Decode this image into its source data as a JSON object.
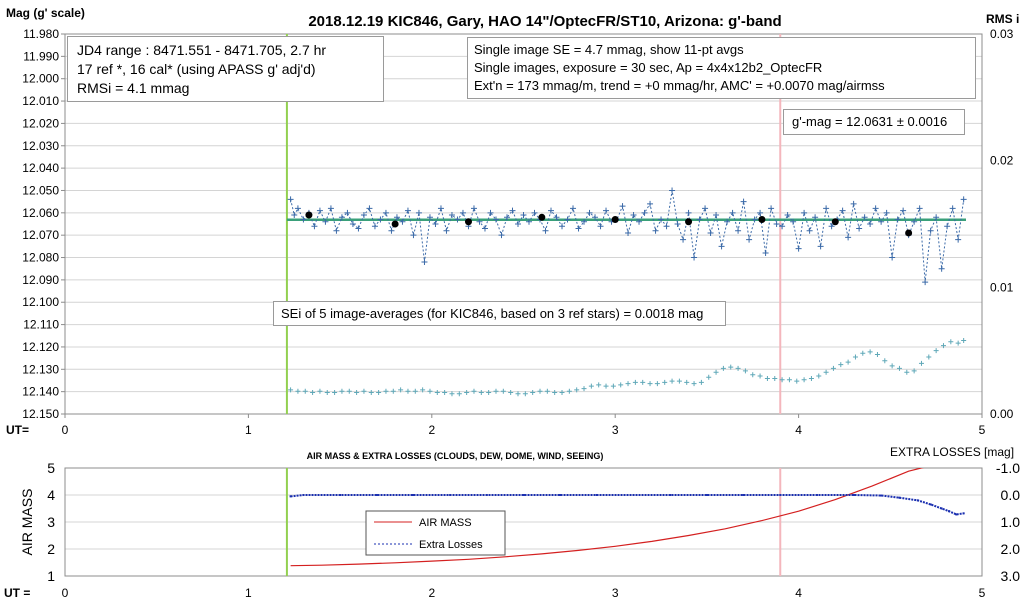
{
  "chart_data": [
    {
      "type": "scatter",
      "title": "2018.12.19 KIC846, Gary, HAO 14\"/OptecFR/ST10, Arizona: g'-band",
      "ylabel": "Mag (g' scale)",
      "y2label": "RMS i",
      "xlabel": "UT=",
      "xlim": [
        0,
        5
      ],
      "ylim": [
        12.15,
        11.98
      ],
      "y_inverted": true,
      "y2lim": [
        0.0,
        0.03
      ],
      "x_ticks": [
        "0",
        "1",
        "2",
        "3",
        "4",
        "5"
      ],
      "y_ticks": [
        "11.980",
        "11.990",
        "12.000",
        "12.010",
        "12.020",
        "12.030",
        "12.040",
        "12.050",
        "12.060",
        "12.070",
        "12.080",
        "12.090",
        "12.100",
        "12.110",
        "12.120",
        "12.130",
        "12.140",
        "12.150"
      ],
      "y2_ticks": [
        "0.00",
        "0.01",
        "0.02",
        "0.03"
      ],
      "grid": "horizontal",
      "vlines": [
        {
          "x": 1.21,
          "color": "#92d050"
        },
        {
          "x": 3.9,
          "color": "#f4b6bc"
        }
      ],
      "fit_level": 12.0631,
      "fit_color": "#3aa07a",
      "series": [
        {
          "kind": "individual",
          "color": "#3b6aa8",
          "x": [
            1.23,
            1.25,
            1.27,
            1.3,
            1.33,
            1.36,
            1.39,
            1.42,
            1.45,
            1.48,
            1.51,
            1.54,
            1.57,
            1.6,
            1.63,
            1.66,
            1.69,
            1.72,
            1.75,
            1.78,
            1.81,
            1.84,
            1.87,
            1.9,
            1.93,
            1.96,
            1.99,
            2.02,
            2.05,
            2.08,
            2.11,
            2.14,
            2.17,
            2.2,
            2.23,
            2.26,
            2.29,
            2.32,
            2.35,
            2.38,
            2.41,
            2.44,
            2.47,
            2.5,
            2.53,
            2.56,
            2.59,
            2.62,
            2.65,
            2.68,
            2.71,
            2.74,
            2.77,
            2.8,
            2.83,
            2.86,
            2.89,
            2.92,
            2.95,
            2.98,
            3.01,
            3.04,
            3.07,
            3.1,
            3.13,
            3.16,
            3.19,
            3.22,
            3.25,
            3.28,
            3.31,
            3.34,
            3.37,
            3.4,
            3.43,
            3.46,
            3.49,
            3.52,
            3.55,
            3.58,
            3.61,
            3.64,
            3.67,
            3.7,
            3.73,
            3.76,
            3.79,
            3.82,
            3.85,
            3.88,
            3.91,
            3.94,
            3.97,
            4.0,
            4.03,
            4.06,
            4.09,
            4.12,
            4.15,
            4.18,
            4.21,
            4.24,
            4.27,
            4.3,
            4.33,
            4.36,
            4.39,
            4.42,
            4.45,
            4.48,
            4.51,
            4.54,
            4.57,
            4.6,
            4.63,
            4.66,
            4.69,
            4.72,
            4.75,
            4.78,
            4.81,
            4.84,
            4.87,
            4.9
          ],
          "y": [
            12.054,
            12.061,
            12.058,
            12.063,
            12.06,
            12.066,
            12.059,
            12.064,
            12.058,
            12.068,
            12.062,
            12.06,
            12.065,
            12.067,
            12.061,
            12.058,
            12.066,
            12.063,
            12.06,
            12.068,
            12.062,
            12.064,
            12.059,
            12.07,
            12.06,
            12.082,
            12.062,
            12.065,
            12.058,
            12.068,
            12.061,
            12.063,
            12.06,
            12.066,
            12.058,
            12.064,
            12.067,
            12.06,
            12.063,
            12.07,
            12.062,
            12.059,
            12.065,
            12.061,
            12.064,
            12.06,
            12.063,
            12.068,
            12.059,
            12.062,
            12.066,
            12.063,
            12.058,
            12.067,
            12.064,
            12.06,
            12.062,
            12.066,
            12.059,
            12.064,
            12.063,
            12.057,
            12.069,
            12.061,
            12.064,
            12.06,
            12.056,
            12.068,
            12.063,
            12.066,
            12.05,
            12.065,
            12.072,
            12.06,
            12.08,
            12.063,
            12.058,
            12.069,
            12.061,
            12.075,
            12.064,
            12.06,
            12.068,
            12.055,
            12.072,
            12.063,
            12.06,
            12.078,
            12.058,
            12.065,
            12.066,
            12.061,
            12.064,
            12.076,
            12.06,
            12.068,
            12.062,
            12.075,
            12.058,
            12.066,
            12.063,
            12.059,
            12.071,
            12.056,
            12.067,
            12.062,
            12.065,
            12.058,
            12.064,
            12.06,
            12.08,
            12.063,
            12.059,
            12.07,
            12.064,
            12.058,
            12.091,
            12.068,
            12.062,
            12.085,
            12.066,
            12.058,
            12.072,
            12.054
          ]
        },
        {
          "kind": "averages",
          "color": "#000000",
          "x": [
            1.33,
            1.8,
            2.2,
            2.6,
            3.0,
            3.4,
            3.8,
            4.2,
            4.6
          ],
          "y": [
            12.061,
            12.065,
            12.064,
            12.062,
            12.063,
            12.064,
            12.063,
            12.064,
            12.069
          ]
        },
        {
          "kind": "rms",
          "axis": "y2",
          "color": "#5fa8b8",
          "x": [
            1.23,
            1.27,
            1.31,
            1.35,
            1.39,
            1.43,
            1.47,
            1.51,
            1.55,
            1.59,
            1.63,
            1.67,
            1.71,
            1.75,
            1.79,
            1.83,
            1.87,
            1.91,
            1.95,
            1.99,
            2.03,
            2.07,
            2.11,
            2.15,
            2.19,
            2.23,
            2.27,
            2.31,
            2.35,
            2.39,
            2.43,
            2.47,
            2.51,
            2.55,
            2.59,
            2.63,
            2.67,
            2.71,
            2.75,
            2.79,
            2.83,
            2.87,
            2.91,
            2.95,
            2.99,
            3.03,
            3.07,
            3.11,
            3.15,
            3.19,
            3.23,
            3.27,
            3.31,
            3.35,
            3.39,
            3.43,
            3.47,
            3.51,
            3.55,
            3.59,
            3.63,
            3.67,
            3.71,
            3.75,
            3.79,
            3.83,
            3.87,
            3.91,
            3.95,
            3.99,
            4.03,
            4.07,
            4.11,
            4.15,
            4.19,
            4.23,
            4.27,
            4.31,
            4.35,
            4.39,
            4.43,
            4.47,
            4.51,
            4.55,
            4.59,
            4.63,
            4.67,
            4.71,
            4.75,
            4.79,
            4.83,
            4.87,
            4.9
          ],
          "y": [
            0.0019,
            0.0018,
            0.0018,
            0.0017,
            0.0018,
            0.0017,
            0.0017,
            0.0018,
            0.0018,
            0.0017,
            0.0018,
            0.0017,
            0.0017,
            0.0018,
            0.0018,
            0.0019,
            0.0018,
            0.0018,
            0.0019,
            0.0018,
            0.0017,
            0.0017,
            0.0016,
            0.0016,
            0.0017,
            0.0018,
            0.0017,
            0.0017,
            0.0018,
            0.0018,
            0.0017,
            0.0016,
            0.0016,
            0.0017,
            0.0018,
            0.0018,
            0.0017,
            0.0017,
            0.0018,
            0.0019,
            0.002,
            0.0022,
            0.0023,
            0.0022,
            0.0022,
            0.0023,
            0.0024,
            0.0025,
            0.0025,
            0.0024,
            0.0024,
            0.0025,
            0.0026,
            0.0026,
            0.0025,
            0.0024,
            0.0025,
            0.0029,
            0.0033,
            0.0036,
            0.0037,
            0.0036,
            0.0034,
            0.0031,
            0.003,
            0.0028,
            0.0028,
            0.0027,
            0.0027,
            0.0026,
            0.0027,
            0.0028,
            0.003,
            0.0033,
            0.0036,
            0.0039,
            0.0041,
            0.0045,
            0.0048,
            0.0049,
            0.0047,
            0.0042,
            0.0038,
            0.0036,
            0.0033,
            0.0034,
            0.004,
            0.0045,
            0.005,
            0.0054,
            0.0057,
            0.0056,
            0.0058
          ]
        }
      ],
      "annotations": {
        "info_left": [
          "JD4 range : 8471.551 - 8471.705,  2.7  hr",
          "17 ref *, 16 cal* (using APASS g' adj'd)",
          "RMSi = 4.1 mmag"
        ],
        "info_right": [
          "Single image SE = 4.7 mmag, show  11-pt avgs",
          "Single images, exposure = 30 sec, Ap = 4x4x12b2_OptecFR",
          "Ext'n = 173 mmag/m, trend =  +0 mmag/hr, AMC' = +0.0070 mag/airmss"
        ],
        "gmag": "g'-mag = 12.0631 ± 0.0016",
        "sei": "SEi of 5 image-averages (for KIC846, based on 3 ref stars) = 0.0018 mag"
      }
    },
    {
      "type": "line",
      "title": "AIR MASS & EXTRA LOSSES (CLOUDS, DEW, DOME, WIND, SEEING)",
      "ylabel": "AIR MASS",
      "y2label": "EXTRA LOSSES [mag]",
      "xlabel": "UT =",
      "xlim": [
        0,
        5
      ],
      "ylim": [
        1,
        5
      ],
      "y2lim": [
        3.0,
        -1.0
      ],
      "x_ticks": [
        "0",
        "1",
        "2",
        "3",
        "4",
        "5"
      ],
      "y_ticks": [
        "1",
        "2",
        "3",
        "4",
        "5"
      ],
      "y2_ticks": [
        "-1.0",
        "0.0",
        "1.0",
        "2.0",
        "3.0"
      ],
      "legend": "center-left",
      "series": [
        {
          "name": "AIR MASS",
          "color": "#d42020",
          "x": [
            1.23,
            1.4,
            1.6,
            1.8,
            2.0,
            2.2,
            2.4,
            2.6,
            2.8,
            3.0,
            3.2,
            3.4,
            3.6,
            3.8,
            4.0,
            4.2,
            4.4,
            4.6,
            4.7
          ],
          "y": [
            1.38,
            1.4,
            1.44,
            1.49,
            1.55,
            1.62,
            1.71,
            1.82,
            1.95,
            2.1,
            2.28,
            2.5,
            2.75,
            3.05,
            3.4,
            3.83,
            4.33,
            4.88,
            5.05
          ]
        },
        {
          "name": "Extra Losses",
          "color": "#1a2fb0",
          "x": [
            1.23,
            1.3,
            1.5,
            1.7,
            1.9,
            2.1,
            2.3,
            2.5,
            2.7,
            2.9,
            3.1,
            3.3,
            3.5,
            3.7,
            3.9,
            4.1,
            4.3,
            4.45,
            4.55,
            4.65,
            4.72,
            4.78,
            4.82,
            4.86,
            4.9
          ],
          "y": [
            0.05,
            0.0,
            0.0,
            0.0,
            0.0,
            0.0,
            0.0,
            0.0,
            0.0,
            0.0,
            0.0,
            0.0,
            0.0,
            0.0,
            0.0,
            0.0,
            0.0,
            0.02,
            0.1,
            0.2,
            0.35,
            0.5,
            0.6,
            0.72,
            0.68
          ]
        }
      ],
      "vlines": [
        {
          "x": 1.21,
          "color": "#92d050"
        },
        {
          "x": 3.9,
          "color": "#f4b6bc"
        }
      ]
    }
  ]
}
